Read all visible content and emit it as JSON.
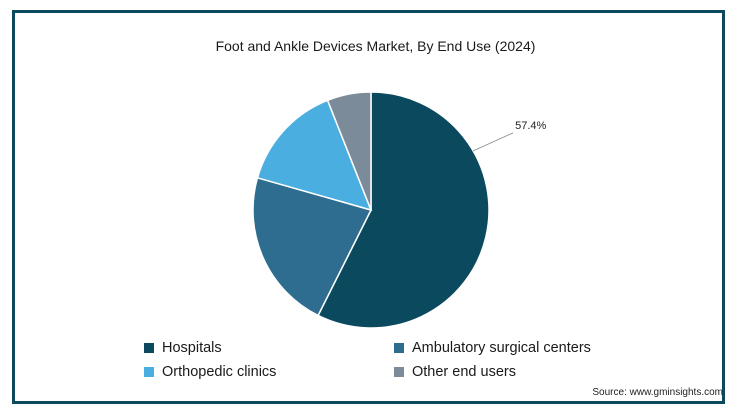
{
  "chart_data": {
    "type": "pie",
    "title": "Foot and Ankle Devices Market, By End Use (2024)",
    "slices": [
      {
        "name": "Hospitals",
        "value": 57.4,
        "color": "#0b4a5e",
        "label": "57.4%"
      },
      {
        "name": "Ambulatory surgical centers",
        "value": 22.0,
        "color": "#2e6d8f"
      },
      {
        "name": "Orthopedic clinics",
        "value": 14.6,
        "color": "#4aaee0"
      },
      {
        "name": "Other end users",
        "value": 6.0,
        "color": "#7b8b9a"
      }
    ],
    "legend_placement": "bottom"
  },
  "source": "Source: www.gminsights.com"
}
